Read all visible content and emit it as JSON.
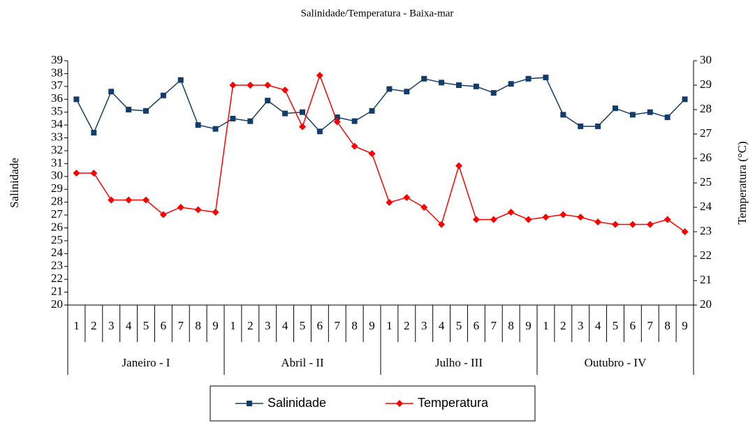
{
  "chart_data": {
    "type": "line",
    "title": "Salinidade/Temperatura - Baixa-mar",
    "ylabel": "Salinidade",
    "y2label": "Temperatura (°C)",
    "categories": [
      "1",
      "2",
      "3",
      "4",
      "5",
      "6",
      "7",
      "8",
      "9",
      "1",
      "2",
      "3",
      "4",
      "5",
      "6",
      "7",
      "8",
      "9",
      "1",
      "2",
      "3",
      "4",
      "5",
      "6",
      "7",
      "8",
      "9",
      "1",
      "2",
      "3",
      "4",
      "5",
      "6",
      "7",
      "8",
      "9"
    ],
    "groups": [
      "Janeiro - I",
      "Abril - II",
      "Julho - III",
      "Outubro - IV"
    ],
    "ylim": [
      20,
      39
    ],
    "yticks": [
      20,
      21,
      22,
      23,
      24,
      25,
      26,
      27,
      28,
      29,
      30,
      31,
      32,
      33,
      34,
      35,
      36,
      37,
      38,
      39
    ],
    "y2lim": [
      20,
      30
    ],
    "y2ticks": [
      20,
      21,
      22,
      23,
      24,
      25,
      26,
      27,
      28,
      29,
      30
    ],
    "series": [
      {
        "name": "Salinidade",
        "color": "#123d6b",
        "marker": "square",
        "values": [
          36.0,
          33.4,
          36.6,
          35.2,
          35.1,
          36.3,
          37.5,
          34.0,
          33.7,
          34.5,
          34.3,
          35.9,
          34.9,
          35.0,
          33.5,
          34.6,
          34.3,
          35.1,
          36.8,
          36.6,
          37.6,
          37.3,
          37.1,
          37.0,
          36.5,
          37.2,
          37.6,
          37.7,
          34.8,
          33.9,
          33.9,
          35.3,
          34.8,
          35.0,
          34.6,
          36.0
        ]
      },
      {
        "name": "Temperatura",
        "color": "#ff0000",
        "marker": "diamond",
        "axis": "y2",
        "values": [
          25.4,
          25.4,
          24.3,
          24.3,
          24.3,
          23.7,
          24.0,
          23.9,
          23.8,
          29.0,
          29.0,
          29.0,
          28.8,
          27.3,
          29.4,
          27.5,
          26.5,
          26.2,
          24.2,
          24.4,
          24.0,
          23.3,
          25.7,
          23.5,
          23.5,
          23.8,
          23.5,
          23.6,
          23.7,
          23.6,
          23.4,
          23.3,
          23.3,
          23.3,
          23.5,
          23.0
        ]
      }
    ]
  }
}
